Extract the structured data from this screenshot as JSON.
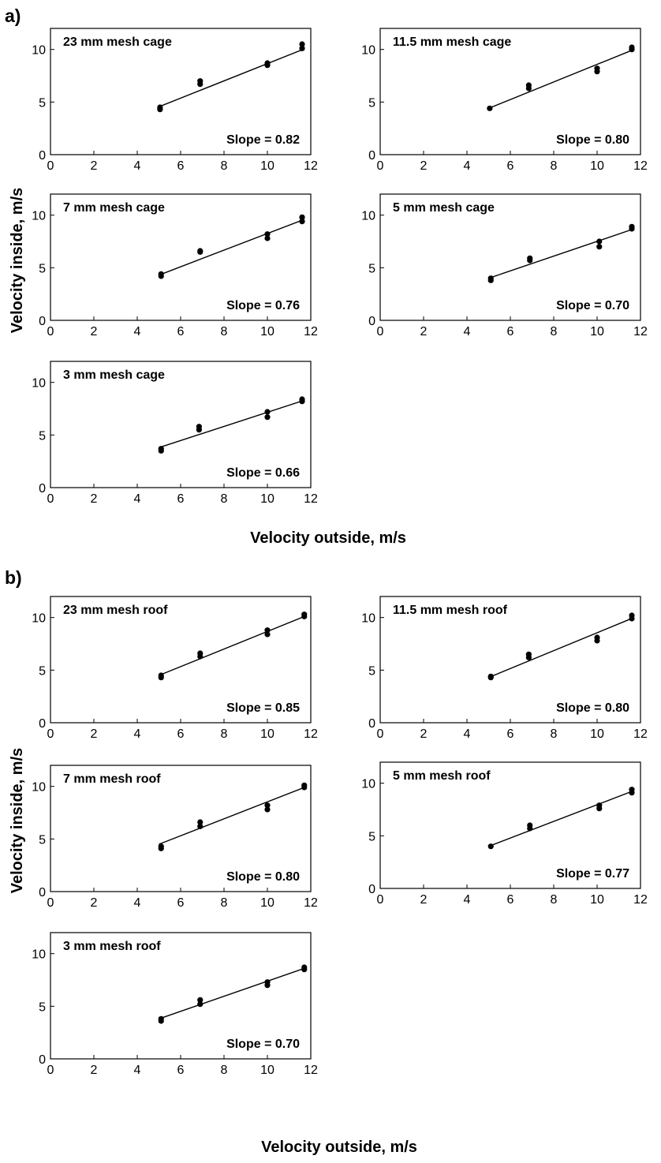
{
  "figure": {
    "panel_a_label": "a)",
    "panel_b_label": "b)",
    "ylabel_a": "Velocity inside, m/s",
    "ylabel_b": "Velocity inside, m/s",
    "xlabel_a": "Velocity outside, m/s",
    "xlabel_b": "Velocity outside, m/s"
  },
  "chart_data": [
    {
      "group": "a",
      "type": "scatter",
      "title": "23 mm mesh cage",
      "annotation": "Slope = 0.82",
      "xlim": [
        0,
        12
      ],
      "ylim": [
        0,
        12
      ],
      "xticks": [
        "0",
        "2",
        "4",
        "6",
        "8",
        "10",
        "12"
      ],
      "yticks": [
        "0",
        "5",
        "10"
      ],
      "points": [
        [
          5.05,
          4.3
        ],
        [
          5.05,
          4.5
        ],
        [
          6.9,
          6.7
        ],
        [
          6.9,
          7.0
        ],
        [
          10.0,
          8.5
        ],
        [
          10.0,
          8.7
        ],
        [
          11.6,
          10.1
        ],
        [
          11.6,
          10.5
        ]
      ],
      "fit": [
        [
          5.0,
          4.55
        ],
        [
          11.7,
          10.05
        ]
      ]
    },
    {
      "group": "a",
      "type": "scatter",
      "title": "11.5 mm mesh cage",
      "annotation": "Slope = 0.80",
      "xlim": [
        0,
        12
      ],
      "ylim": [
        0,
        12
      ],
      "xticks": [
        "0",
        "2",
        "4",
        "6",
        "8",
        "10",
        "12"
      ],
      "yticks": [
        "0",
        "5",
        "10"
      ],
      "points": [
        [
          5.05,
          4.4
        ],
        [
          6.85,
          6.3
        ],
        [
          6.85,
          6.6
        ],
        [
          10.0,
          7.9
        ],
        [
          10.0,
          8.2
        ],
        [
          11.6,
          10.0
        ],
        [
          11.6,
          10.2
        ]
      ],
      "fit": [
        [
          5.0,
          4.4
        ],
        [
          11.7,
          10.0
        ]
      ]
    },
    {
      "group": "a",
      "type": "scatter",
      "title": "7 mm mesh cage",
      "annotation": "Slope = 0.76",
      "xlim": [
        0,
        12
      ],
      "ylim": [
        0,
        12
      ],
      "xticks": [
        "0",
        "2",
        "4",
        "6",
        "8",
        "10",
        "12"
      ],
      "yticks": [
        "0",
        "5",
        "10"
      ],
      "points": [
        [
          5.1,
          4.2
        ],
        [
          5.1,
          4.4
        ],
        [
          6.9,
          6.5
        ],
        [
          6.9,
          6.6
        ],
        [
          10.0,
          7.8
        ],
        [
          10.0,
          8.2
        ],
        [
          11.6,
          9.4
        ],
        [
          11.6,
          9.8
        ]
      ],
      "fit": [
        [
          5.0,
          4.3
        ],
        [
          11.7,
          9.6
        ]
      ]
    },
    {
      "group": "a",
      "type": "scatter",
      "title": "5 mm mesh cage",
      "annotation": "Slope = 0.70",
      "xlim": [
        0,
        12
      ],
      "ylim": [
        0,
        12
      ],
      "xticks": [
        "0",
        "2",
        "4",
        "6",
        "8",
        "10",
        "12"
      ],
      "yticks": [
        "0",
        "5",
        "10"
      ],
      "points": [
        [
          5.1,
          3.8
        ],
        [
          5.1,
          4.0
        ],
        [
          6.9,
          5.7
        ],
        [
          6.9,
          5.9
        ],
        [
          10.1,
          7.0
        ],
        [
          10.1,
          7.5
        ],
        [
          11.6,
          8.7
        ],
        [
          11.6,
          8.9
        ]
      ],
      "fit": [
        [
          5.0,
          4.0
        ],
        [
          11.7,
          8.7
        ]
      ]
    },
    {
      "group": "a",
      "type": "scatter",
      "title": "3 mm mesh cage",
      "annotation": "Slope = 0.66",
      "xlim": [
        0,
        12
      ],
      "ylim": [
        0,
        12
      ],
      "xticks": [
        "0",
        "2",
        "4",
        "6",
        "8",
        "10",
        "12"
      ],
      "yticks": [
        "0",
        "5",
        "10"
      ],
      "points": [
        [
          5.1,
          3.5
        ],
        [
          5.1,
          3.7
        ],
        [
          6.85,
          5.5
        ],
        [
          6.85,
          5.8
        ],
        [
          10.0,
          6.7
        ],
        [
          10.0,
          7.2
        ],
        [
          11.6,
          8.2
        ],
        [
          11.6,
          8.4
        ]
      ],
      "fit": [
        [
          5.0,
          3.8
        ],
        [
          11.7,
          8.3
        ]
      ]
    },
    {
      "group": "b",
      "type": "scatter",
      "title": "23 mm mesh roof",
      "annotation": "Slope = 0.85",
      "xlim": [
        0,
        12
      ],
      "ylim": [
        0,
        12
      ],
      "xticks": [
        "0",
        "2",
        "4",
        "6",
        "8",
        "10",
        "12"
      ],
      "yticks": [
        "0",
        "5",
        "10"
      ],
      "points": [
        [
          5.1,
          4.3
        ],
        [
          5.1,
          4.5
        ],
        [
          6.9,
          6.3
        ],
        [
          6.9,
          6.6
        ],
        [
          10.0,
          8.4
        ],
        [
          10.0,
          8.8
        ],
        [
          11.7,
          10.1
        ],
        [
          11.7,
          10.3
        ]
      ],
      "fit": [
        [
          5.0,
          4.5
        ],
        [
          11.7,
          10.1
        ]
      ]
    },
    {
      "group": "b",
      "type": "scatter",
      "title": "11.5 mm mesh roof",
      "annotation": "Slope = 0.80",
      "xlim": [
        0,
        12
      ],
      "ylim": [
        0,
        12
      ],
      "xticks": [
        "0",
        "2",
        "4",
        "6",
        "8",
        "10",
        "12"
      ],
      "yticks": [
        "0",
        "5",
        "10"
      ],
      "points": [
        [
          5.1,
          4.3
        ],
        [
          5.1,
          4.4
        ],
        [
          6.85,
          6.2
        ],
        [
          6.85,
          6.5
        ],
        [
          10.0,
          7.8
        ],
        [
          10.0,
          8.1
        ],
        [
          11.6,
          9.9
        ],
        [
          11.6,
          10.2
        ]
      ],
      "fit": [
        [
          5.0,
          4.3
        ],
        [
          11.7,
          10.0
        ]
      ]
    },
    {
      "group": "b",
      "type": "scatter",
      "title": "7 mm mesh roof",
      "annotation": "Slope = 0.80",
      "xlim": [
        0,
        12
      ],
      "ylim": [
        0,
        12
      ],
      "xticks": [
        "0",
        "2",
        "4",
        "6",
        "8",
        "10",
        "12"
      ],
      "yticks": [
        "0",
        "5",
        "10"
      ],
      "points": [
        [
          5.1,
          4.1
        ],
        [
          5.1,
          4.3
        ],
        [
          6.9,
          6.2
        ],
        [
          6.9,
          6.6
        ],
        [
          10.0,
          7.8
        ],
        [
          10.0,
          8.2
        ],
        [
          11.7,
          9.9
        ],
        [
          11.7,
          10.1
        ]
      ],
      "fit": [
        [
          5.0,
          4.5
        ],
        [
          11.7,
          9.9
        ]
      ]
    },
    {
      "group": "b",
      "type": "scatter",
      "title": "5 mm mesh roof",
      "annotation": "Slope = 0.77",
      "xlim": [
        0,
        12
      ],
      "ylim": [
        0,
        12
      ],
      "xticks": [
        "0",
        "2",
        "4",
        "6",
        "8",
        "10",
        "12"
      ],
      "yticks": [
        "0",
        "5",
        "10"
      ],
      "points": [
        [
          5.1,
          4.0
        ],
        [
          6.9,
          5.7
        ],
        [
          6.9,
          6.0
        ],
        [
          10.1,
          7.6
        ],
        [
          10.1,
          7.9
        ],
        [
          11.6,
          9.1
        ],
        [
          11.6,
          9.4
        ]
      ],
      "fit": [
        [
          5.0,
          4.0
        ],
        [
          11.7,
          9.3
        ]
      ]
    },
    {
      "group": "b",
      "type": "scatter",
      "title": "3 mm mesh roof",
      "annotation": "Slope = 0.70",
      "xlim": [
        0,
        12
      ],
      "ylim": [
        0,
        12
      ],
      "xticks": [
        "0",
        "2",
        "4",
        "6",
        "8",
        "10",
        "12"
      ],
      "yticks": [
        "0",
        "5",
        "10"
      ],
      "points": [
        [
          5.1,
          3.6
        ],
        [
          5.1,
          3.8
        ],
        [
          6.9,
          5.2
        ],
        [
          6.9,
          5.6
        ],
        [
          10.0,
          7.0
        ],
        [
          10.0,
          7.3
        ],
        [
          11.7,
          8.5
        ],
        [
          11.7,
          8.7
        ]
      ],
      "fit": [
        [
          5.0,
          3.8
        ],
        [
          11.7,
          8.6
        ]
      ]
    }
  ]
}
